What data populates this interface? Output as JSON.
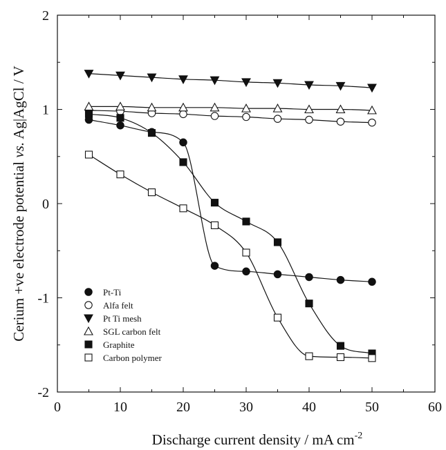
{
  "chart_data": {
    "type": "scatter",
    "title": "",
    "xlabel": "Discharge current density / mA cm",
    "xlabel_sup": "-2",
    "ylabel_pre": "Cerium +ve  electrode potential ",
    "ylabel_vs": "vs.",
    "ylabel_post": " Ag|AgCl / V",
    "xlim": [
      0,
      60
    ],
    "ylim": [
      -2,
      2
    ],
    "x_ticks": [
      "0",
      "10",
      "20",
      "30",
      "40",
      "50",
      "60"
    ],
    "y_ticks": [
      "-2",
      "-1",
      "0",
      "1",
      "2"
    ],
    "grid": false,
    "legend_position": "bottom-left",
    "series": [
      {
        "name": "Pt-Ti",
        "marker": "circle-filled",
        "x": [
          5,
          10,
          15,
          20,
          25,
          30,
          35,
          40,
          45,
          50
        ],
        "y": [
          0.89,
          0.83,
          0.76,
          0.65,
          -0.66,
          -0.72,
          -0.75,
          -0.78,
          -0.81,
          -0.83
        ]
      },
      {
        "name": "Alfa felt",
        "marker": "circle-open",
        "x": [
          5,
          10,
          15,
          20,
          25,
          30,
          35,
          40,
          45,
          50
        ],
        "y": [
          0.99,
          0.98,
          0.96,
          0.95,
          0.93,
          0.92,
          0.9,
          0.89,
          0.87,
          0.86
        ]
      },
      {
        "name": "Pt Ti mesh",
        "marker": "triangle-down-filled",
        "x": [
          5,
          10,
          15,
          20,
          25,
          30,
          35,
          40,
          45,
          50
        ],
        "y": [
          1.38,
          1.36,
          1.34,
          1.32,
          1.31,
          1.29,
          1.28,
          1.26,
          1.25,
          1.23
        ]
      },
      {
        "name": "SGL carbon felt",
        "marker": "triangle-up-open",
        "x": [
          5,
          10,
          15,
          20,
          25,
          30,
          35,
          40,
          45,
          50
        ],
        "y": [
          1.03,
          1.03,
          1.02,
          1.02,
          1.02,
          1.01,
          1.01,
          1.0,
          1.0,
          0.99
        ]
      },
      {
        "name": "Graphite",
        "marker": "square-filled",
        "x": [
          5,
          10,
          15,
          20,
          25,
          30,
          35,
          40,
          45,
          50
        ],
        "y": [
          0.95,
          0.91,
          0.75,
          0.44,
          0.01,
          -0.19,
          -0.41,
          -1.06,
          -1.51,
          -1.59
        ]
      },
      {
        "name": "Carbon polymer",
        "marker": "square-open",
        "x": [
          5,
          10,
          15,
          20,
          25,
          30,
          35,
          40,
          45,
          50
        ],
        "y": [
          0.52,
          0.31,
          0.12,
          -0.05,
          -0.23,
          -0.52,
          -1.21,
          -1.62,
          -1.63,
          -1.64
        ]
      }
    ]
  }
}
